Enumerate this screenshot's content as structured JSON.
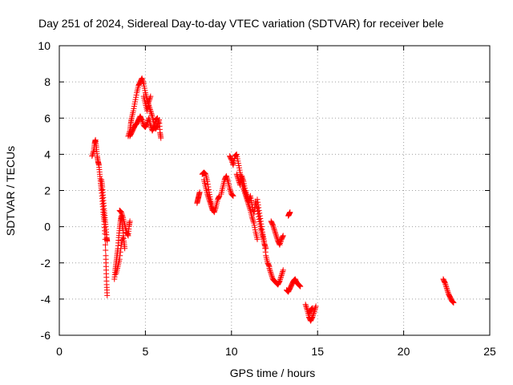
{
  "chart_data": {
    "type": "scatter",
    "title": "Day 251 of 2024, Sidereal Day-to-day VTEC variation (SDTVAR) for receiver bele",
    "xlabel": "GPS time / hours",
    "ylabel": "SDTVAR / TECUs",
    "xlim": [
      0,
      25
    ],
    "ylim": [
      -6,
      10
    ],
    "xticks": [
      0,
      5,
      10,
      15,
      20,
      25
    ],
    "yticks": [
      -6,
      -4,
      -2,
      0,
      2,
      4,
      6,
      8,
      10
    ],
    "xtick_labels": [
      "0",
      "5",
      "10",
      "15",
      "20",
      "25"
    ],
    "ytick_labels": [
      "-6",
      "-4",
      "-2",
      "0",
      "2",
      "4",
      "6",
      "8",
      "10"
    ],
    "grid": true,
    "marker": "+",
    "color": "#ff0000",
    "series": [
      {
        "name": "SDTVAR",
        "segments": [
          [
            [
              1.9,
              3.9
            ],
            [
              2.0,
              4.2
            ],
            [
              2.05,
              4.6
            ],
            [
              2.1,
              4.8
            ],
            [
              2.15,
              4.4
            ],
            [
              2.2,
              3.9
            ],
            [
              2.25,
              3.6
            ],
            [
              2.3,
              3.4
            ],
            [
              2.35,
              2.9
            ],
            [
              2.4,
              2.4
            ],
            [
              2.45,
              2.0
            ],
            [
              2.5,
              1.4
            ],
            [
              2.55,
              0.8
            ],
            [
              2.6,
              0.3
            ],
            [
              2.65,
              -0.4
            ],
            [
              2.7,
              -1.6
            ],
            [
              2.72,
              -2.4
            ],
            [
              2.75,
              -3.2
            ],
            [
              2.78,
              -3.8
            ]
          ],
          [
            [
              2.45,
              2.6
            ],
            [
              2.5,
              2.2
            ],
            [
              2.55,
              1.6
            ],
            [
              2.6,
              1.0
            ],
            [
              2.65,
              0.5
            ],
            [
              2.7,
              0.0
            ],
            [
              2.75,
              -0.6
            ],
            [
              2.78,
              -0.8
            ]
          ],
          [
            [
              3.2,
              -2.9
            ],
            [
              3.25,
              -2.4
            ],
            [
              3.3,
              -2.0
            ],
            [
              3.35,
              -1.6
            ],
            [
              3.4,
              -1.2
            ],
            [
              3.45,
              -0.6
            ],
            [
              3.5,
              -0.1
            ],
            [
              3.55,
              0.3
            ],
            [
              3.6,
              0.6
            ],
            [
              3.65,
              0.2
            ],
            [
              3.7,
              -0.2
            ],
            [
              3.75,
              -0.8
            ],
            [
              3.8,
              -1.2
            ]
          ],
          [
            [
              3.5,
              0.9
            ],
            [
              3.6,
              0.8
            ],
            [
              3.7,
              0.5
            ],
            [
              3.8,
              0.1
            ],
            [
              3.9,
              -0.3
            ],
            [
              4.0,
              -0.5
            ],
            [
              4.05,
              0.0
            ],
            [
              4.1,
              0.3
            ]
          ],
          [
            [
              3.3,
              -2.6
            ],
            [
              3.4,
              -2.2
            ],
            [
              3.5,
              -1.8
            ],
            [
              3.6,
              -1.0
            ],
            [
              3.7,
              -0.6
            ]
          ],
          [
            [
              4.0,
              5.0
            ],
            [
              4.1,
              5.3
            ],
            [
              4.15,
              5.7
            ],
            [
              4.2,
              6.0
            ],
            [
              4.3,
              6.4
            ],
            [
              4.4,
              6.9
            ],
            [
              4.5,
              7.4
            ],
            [
              4.6,
              7.8
            ],
            [
              4.7,
              8.0
            ],
            [
              4.8,
              8.2
            ],
            [
              4.9,
              7.9
            ],
            [
              5.0,
              7.4
            ],
            [
              5.1,
              7.0
            ],
            [
              5.2,
              6.7
            ],
            [
              5.3,
              6.4
            ],
            [
              5.4,
              6.1
            ],
            [
              5.5,
              5.7
            ],
            [
              5.6,
              5.4
            ],
            [
              5.7,
              5.6
            ],
            [
              5.8,
              5.9
            ],
            [
              5.85,
              5.2
            ],
            [
              5.9,
              4.9
            ]
          ],
          [
            [
              4.1,
              5.0
            ],
            [
              4.2,
              5.2
            ],
            [
              4.3,
              5.4
            ],
            [
              4.4,
              5.6
            ],
            [
              4.5,
              5.7
            ],
            [
              4.6,
              5.9
            ],
            [
              4.7,
              6.1
            ],
            [
              4.8,
              5.9
            ],
            [
              4.9,
              5.6
            ],
            [
              5.0,
              5.5
            ],
            [
              5.1,
              5.7
            ],
            [
              5.2,
              6.0
            ],
            [
              5.3,
              5.6
            ],
            [
              5.4,
              5.3
            ],
            [
              5.5,
              5.5
            ],
            [
              5.6,
              5.9
            ],
            [
              5.7,
              6.0
            ]
          ],
          [
            [
              4.9,
              7.2
            ],
            [
              5.0,
              6.8
            ],
            [
              5.1,
              6.4
            ],
            [
              5.2,
              6.9
            ],
            [
              5.3,
              7.2
            ]
          ],
          [
            [
              8.0,
              1.3
            ],
            [
              8.05,
              1.5
            ],
            [
              8.1,
              1.7
            ],
            [
              8.15,
              1.9
            ]
          ],
          [
            [
              8.3,
              2.9
            ],
            [
              8.4,
              3.0
            ],
            [
              8.5,
              2.9
            ],
            [
              8.6,
              2.5
            ],
            [
              8.7,
              1.9
            ],
            [
              8.8,
              1.4
            ],
            [
              8.9,
              1.0
            ],
            [
              9.0,
              0.8
            ],
            [
              9.1,
              1.1
            ],
            [
              9.2,
              1.5
            ],
            [
              9.3,
              1.7
            ]
          ],
          [
            [
              8.4,
              2.6
            ],
            [
              8.5,
              2.2
            ],
            [
              8.6,
              1.8
            ],
            [
              8.7,
              1.5
            ],
            [
              8.8,
              1.2
            ],
            [
              8.9,
              0.9
            ]
          ],
          [
            [
              9.4,
              1.8
            ],
            [
              9.5,
              2.2
            ],
            [
              9.6,
              2.6
            ],
            [
              9.7,
              2.8
            ],
            [
              9.8,
              2.5
            ],
            [
              9.9,
              2.1
            ],
            [
              10.0,
              1.8
            ],
            [
              10.1,
              1.7
            ]
          ],
          [
            [
              9.9,
              3.9
            ],
            [
              10.0,
              3.7
            ],
            [
              10.1,
              3.4
            ],
            [
              10.2,
              3.9
            ],
            [
              10.3,
              4.0
            ],
            [
              10.4,
              3.5
            ],
            [
              10.5,
              3.0
            ],
            [
              10.6,
              2.5
            ],
            [
              10.7,
              2.1
            ],
            [
              10.8,
              1.8
            ],
            [
              10.9,
              1.5
            ],
            [
              11.0,
              1.2
            ],
            [
              11.1,
              0.9
            ],
            [
              11.2,
              0.5
            ],
            [
              11.3,
              0.2
            ],
            [
              11.4,
              -0.3
            ],
            [
              11.5,
              -0.7
            ]
          ],
          [
            [
              10.3,
              2.9
            ],
            [
              10.4,
              2.6
            ],
            [
              10.5,
              2.3
            ],
            [
              10.6,
              2.8
            ],
            [
              10.7,
              2.5
            ],
            [
              10.8,
              2.0
            ],
            [
              10.9,
              1.7
            ],
            [
              11.0,
              1.4
            ],
            [
              11.1,
              1.7
            ],
            [
              11.2,
              1.2
            ],
            [
              11.3,
              0.7
            ],
            [
              11.4,
              1.4
            ],
            [
              11.5,
              1.0
            ],
            [
              11.6,
              0.4
            ],
            [
              11.7,
              -0.1
            ],
            [
              11.8,
              -0.5
            ],
            [
              11.9,
              -0.9
            ],
            [
              12.0,
              -1.2
            ]
          ],
          [
            [
              11.5,
              1.5
            ],
            [
              11.6,
              0.9
            ],
            [
              11.7,
              0.3
            ],
            [
              11.8,
              -0.3
            ],
            [
              11.9,
              -0.8
            ],
            [
              12.0,
              -1.6
            ],
            [
              12.1,
              -2.0
            ],
            [
              12.2,
              -2.2
            ]
          ],
          [
            [
              12.2,
              -2.3
            ],
            [
              12.3,
              -2.6
            ],
            [
              12.4,
              -2.9
            ],
            [
              12.5,
              -3.0
            ],
            [
              12.6,
              -3.1
            ],
            [
              12.7,
              -3.2
            ],
            [
              12.8,
              -3.0
            ],
            [
              12.9,
              -2.7
            ],
            [
              13.0,
              -2.4
            ]
          ],
          [
            [
              12.3,
              0.3
            ],
            [
              12.4,
              0.1
            ],
            [
              12.5,
              -0.2
            ],
            [
              12.6,
              -0.5
            ],
            [
              12.7,
              -0.8
            ],
            [
              12.8,
              -1.0
            ],
            [
              12.9,
              -0.7
            ],
            [
              13.0,
              -0.5
            ]
          ],
          [
            [
              13.3,
              0.6
            ],
            [
              13.35,
              0.7
            ],
            [
              13.4,
              0.8
            ]
          ],
          [
            [
              13.2,
              -3.5
            ],
            [
              13.3,
              -3.6
            ],
            [
              13.4,
              -3.4
            ],
            [
              13.5,
              -3.2
            ],
            [
              13.6,
              -3.0
            ],
            [
              13.7,
              -2.9
            ],
            [
              13.8,
              -3.1
            ],
            [
              13.9,
              -3.2
            ],
            [
              14.0,
              -3.3
            ]
          ],
          [
            [
              14.3,
              -4.3
            ],
            [
              14.4,
              -4.6
            ],
            [
              14.5,
              -5.0
            ],
            [
              14.6,
              -5.2
            ],
            [
              14.7,
              -5.0
            ],
            [
              14.8,
              -4.7
            ],
            [
              14.9,
              -4.4
            ]
          ],
          [
            [
              14.5,
              -4.8
            ],
            [
              14.6,
              -4.6
            ],
            [
              14.7,
              -4.5
            ]
          ],
          [
            [
              22.3,
              -2.9
            ],
            [
              22.4,
              -3.1
            ],
            [
              22.5,
              -3.4
            ],
            [
              22.6,
              -3.7
            ],
            [
              22.7,
              -3.9
            ],
            [
              22.8,
              -4.1
            ],
            [
              22.9,
              -4.2
            ]
          ]
        ]
      }
    ]
  }
}
